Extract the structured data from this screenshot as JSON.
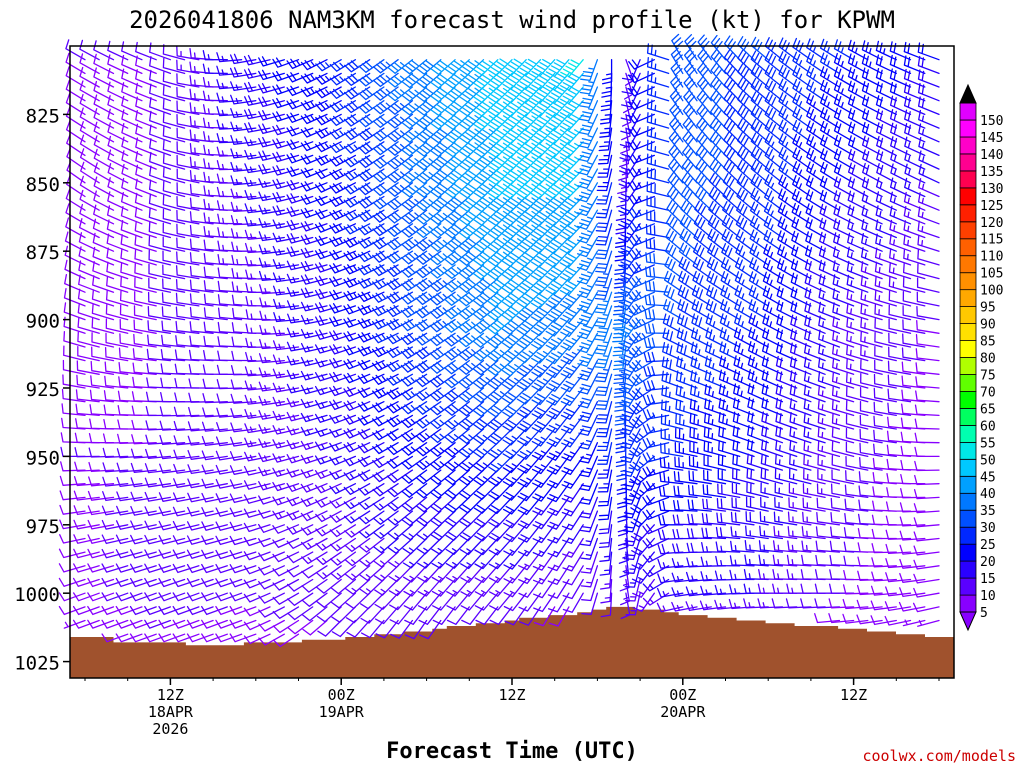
{
  "chart_data": {
    "type": "wind-profile",
    "title": "2026041806 NAM3KM forecast wind profile (kt) for KPWM",
    "xlabel": "Forecast Time (UTC)",
    "ylabel": "",
    "credit": "coolwx.com/models",
    "yticks": [
      825,
      850,
      875,
      900,
      925,
      950,
      975,
      1000,
      1025
    ],
    "ylim": [
      800,
      1031
    ],
    "x_hours_start": 0,
    "x_hours_end": 60,
    "x_step_hours": 1,
    "xticks": [
      {
        "hour": 6,
        "lines": [
          "12Z",
          "18APR",
          "2026"
        ]
      },
      {
        "hour": 18,
        "lines": [
          "00Z",
          "19APR"
        ]
      },
      {
        "hour": 30,
        "lines": [
          "12Z"
        ]
      },
      {
        "hour": 42,
        "lines": [
          "00Z",
          "20APR"
        ]
      },
      {
        "hour": 54,
        "lines": [
          "12Z"
        ]
      }
    ],
    "surface_pressure": [
      1016,
      1016,
      1016,
      1018,
      1018,
      1018,
      1018,
      1018,
      1019,
      1019,
      1019,
      1019,
      1018,
      1018,
      1018,
      1018,
      1017,
      1017,
      1017,
      1016,
      1016,
      1015,
      1015,
      1014,
      1014,
      1013,
      1012,
      1012,
      1011,
      1011,
      1010,
      1009,
      1009,
      1008,
      1008,
      1007,
      1006,
      1005,
      1005,
      1006,
      1006,
      1007,
      1008,
      1008,
      1009,
      1009,
      1010,
      1010,
      1011,
      1011,
      1012,
      1012,
      1012,
      1013,
      1013,
      1014,
      1014,
      1015,
      1015,
      1016,
      1016
    ],
    "colorbar": {
      "levels": [
        5,
        10,
        15,
        20,
        25,
        30,
        35,
        40,
        45,
        50,
        55,
        60,
        65,
        70,
        75,
        80,
        85,
        90,
        95,
        100,
        105,
        110,
        115,
        120,
        125,
        130,
        135,
        140,
        145,
        150
      ],
      "colors": [
        "#8800ff",
        "#5a00ff",
        "#2a00ff",
        "#0000ff",
        "#0028ff",
        "#0050ff",
        "#0078ff",
        "#00a0ff",
        "#00c8ff",
        "#00e8e8",
        "#00ffb0",
        "#00ff60",
        "#00ff00",
        "#60ff00",
        "#b0ff00",
        "#ffff00",
        "#ffe000",
        "#ffc800",
        "#ffa800",
        "#ff9000",
        "#ff7800",
        "#ff6000",
        "#ff4000",
        "#ff2000",
        "#ff0000",
        "#ff0050",
        "#ff0090",
        "#ff00c8",
        "#ff00ff",
        "#e000ff"
      ],
      "top_arrow_color": "#000000",
      "bottom_arrow_color": "#8800ff"
    },
    "winds": {
      "description": "Wind barbs per forecast hour (0-60) and pressure level (805-1020 hPa, every 5 hPa). Each column: direction (deg from) and speed (kt) at key levels, interpolated between.",
      "levels": [
        805,
        850,
        900,
        950,
        1000,
        1020
      ],
      "columns": [
        {
          "hour": 0,
          "dir": [
            300,
            305,
            290,
            270,
            250,
            250
          ],
          "spd": [
            10,
            8,
            8,
            10,
            8,
            6
          ]
        },
        {
          "hour": 6,
          "dir": [
            290,
            290,
            280,
            265,
            250,
            250
          ],
          "spd": [
            10,
            10,
            10,
            10,
            12,
            8
          ]
        },
        {
          "hour": 12,
          "dir": [
            260,
            265,
            275,
            260,
            250,
            250
          ],
          "spd": [
            18,
            15,
            12,
            12,
            10,
            8
          ]
        },
        {
          "hour": 18,
          "dir": [
            240,
            245,
            255,
            250,
            230,
            220
          ],
          "spd": [
            25,
            22,
            18,
            15,
            12,
            8
          ]
        },
        {
          "hour": 24,
          "dir": [
            230,
            230,
            240,
            235,
            220,
            210
          ],
          "spd": [
            38,
            35,
            30,
            22,
            12,
            8
          ]
        },
        {
          "hour": 30,
          "dir": [
            225,
            225,
            230,
            225,
            220,
            210
          ],
          "spd": [
            48,
            45,
            40,
            25,
            12,
            8
          ]
        },
        {
          "hour": 35,
          "dir": [
            220,
            225,
            220,
            215,
            210,
            200
          ],
          "spd": [
            50,
            45,
            38,
            22,
            10,
            6
          ]
        },
        {
          "hour": 38,
          "dir": [
            160,
            180,
            190,
            180,
            170,
            160
          ],
          "spd": [
            10,
            15,
            38,
            25,
            12,
            6
          ]
        },
        {
          "hour": 42,
          "dir": [
            330,
            320,
            300,
            280,
            260,
            250
          ],
          "spd": [
            30,
            32,
            30,
            25,
            15,
            8
          ]
        },
        {
          "hour": 48,
          "dir": [
            310,
            310,
            300,
            290,
            270,
            260
          ],
          "spd": [
            30,
            28,
            25,
            20,
            15,
            8
          ]
        },
        {
          "hour": 54,
          "dir": [
            300,
            300,
            290,
            285,
            270,
            260
          ],
          "spd": [
            25,
            20,
            15,
            12,
            10,
            8
          ]
        },
        {
          "hour": 60,
          "dir": [
            290,
            295,
            280,
            270,
            260,
            250
          ],
          "spd": [
            20,
            15,
            10,
            8,
            8,
            6
          ]
        }
      ]
    }
  }
}
